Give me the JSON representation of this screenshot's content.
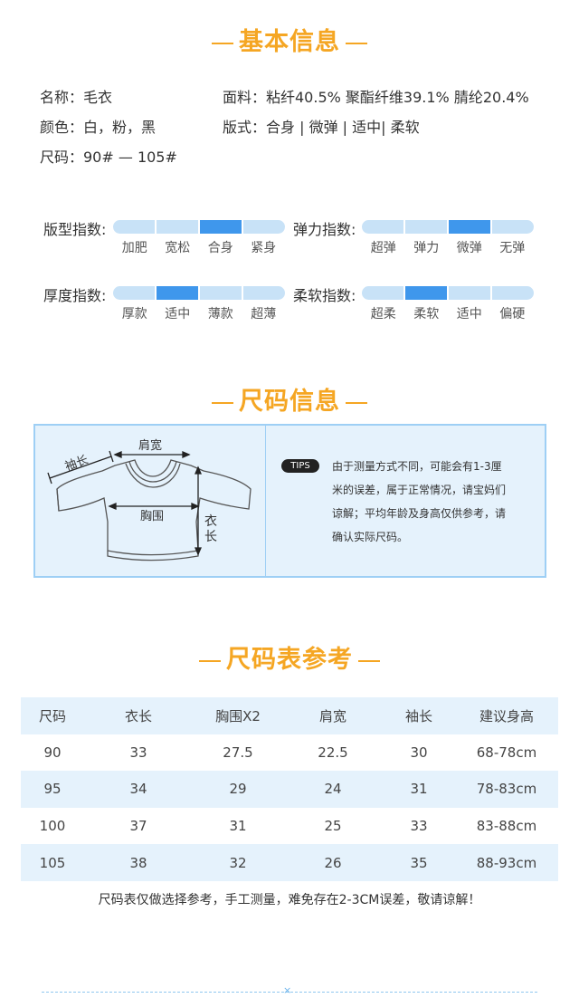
{
  "basic": {
    "title": "基本信息",
    "name": "名称：毛衣",
    "color": "颜色：白，粉，黑",
    "size": "尺码：90# — 105#",
    "fabric": "面料：粘纤40.5% 聚酯纤维39.1% 腈纶20.4%",
    "fit": "版式：合身 | 微弹 | 适中| 柔软"
  },
  "gauges": [
    {
      "label": "版型指数:",
      "options": [
        "加肥",
        "宽松",
        "合身",
        "紧身"
      ],
      "selected": 2
    },
    {
      "label": "弹力指数:",
      "options": [
        "超弹",
        "弹力",
        "微弹",
        "无弹"
      ],
      "selected": 2
    },
    {
      "label": "厚度指数:",
      "options": [
        "厚款",
        "适中",
        "薄款",
        "超薄"
      ],
      "selected": 1
    },
    {
      "label": "柔软指数:",
      "options": [
        "超柔",
        "柔软",
        "适中",
        "偏硬"
      ],
      "selected": 1
    }
  ],
  "measure": {
    "title": "尺码信息",
    "labels": {
      "sleeve": "袖长",
      "shoulder": "肩宽",
      "chest": "胸围",
      "length_1": "衣",
      "length_2": "长"
    },
    "tips_badge": "TIPS",
    "tips_lines": [
      "由于测量方式不同，可能会有1-3厘",
      "米的误差，属于正常情况，请宝妈们",
      "谅解；平均年龄及身高仅供参考，请",
      "确认实际尺码。"
    ]
  },
  "size_table": {
    "title": "尺码表参考",
    "headers": [
      "尺码",
      "衣长",
      "胸围X2",
      "肩宽",
      "袖长",
      "建议身高"
    ],
    "rows": [
      [
        "90",
        "33",
        "27.5",
        "22.5",
        "30",
        "68-78cm"
      ],
      [
        "95",
        "34",
        "29",
        "24",
        "31",
        "78-83cm"
      ],
      [
        "100",
        "37",
        "31",
        "25",
        "33",
        "83-88cm"
      ],
      [
        "105",
        "38",
        "32",
        "26",
        "35",
        "88-93cm"
      ]
    ],
    "note": "尺码表仅做选择参考，手工测量，难免存在2-3CM误差，敬请谅解！"
  },
  "footer": {
    "mark": "×"
  },
  "colors": {
    "accent": "#f5a623",
    "gauge_on": "#3f97ec",
    "gauge_off": "#c8e2f7",
    "panel_bg": "#e5f2fc",
    "panel_border": "#9ecff5"
  }
}
